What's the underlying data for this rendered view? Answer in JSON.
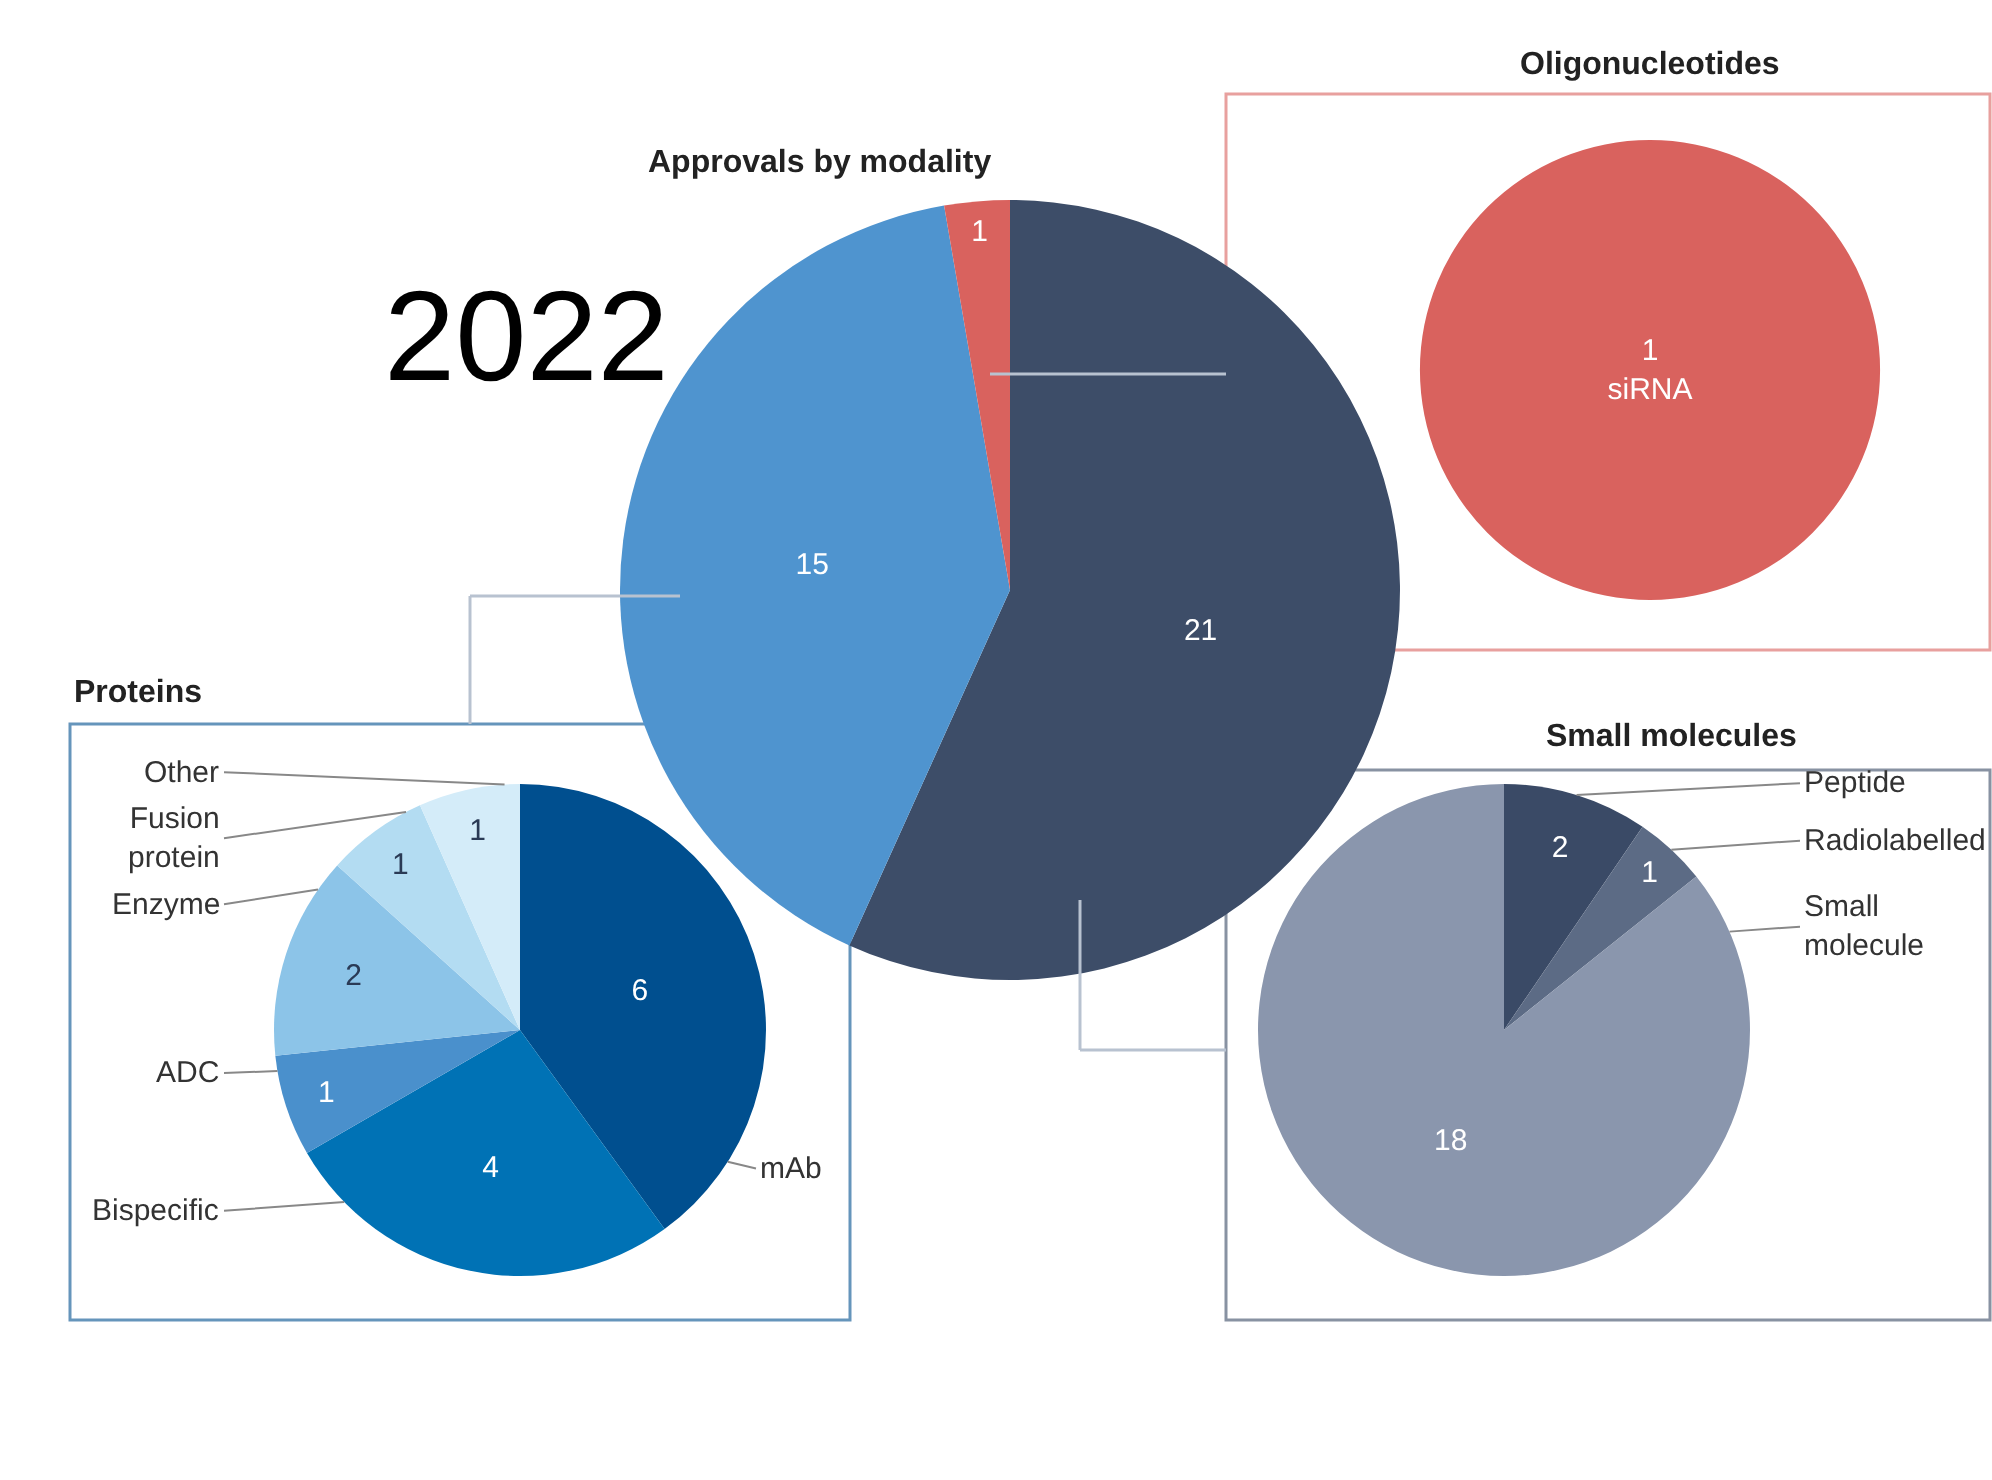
{
  "chart_data": [
    {
      "type": "pie",
      "title": "Approvals by modality",
      "categories": [
        null,
        null,
        null
      ],
      "values": [
        21,
        15,
        1
      ],
      "colors": [
        "#3d4d68",
        "#4f94cf",
        "#d9625e"
      ],
      "data_labels": true,
      "annotations": [
        "2022"
      ]
    },
    {
      "type": "pie",
      "title": "Oligonucleotides",
      "categories": [
        "siRNA"
      ],
      "values": [
        1
      ],
      "colors": [
        "#d9625e"
      ],
      "data_labels": true
    },
    {
      "type": "pie",
      "title": "Proteins",
      "categories": [
        "mAb",
        "Bispecific",
        "ADC",
        "Enzyme",
        "Fusion protein",
        "Other"
      ],
      "values": [
        6,
        4,
        1,
        2,
        1,
        1
      ],
      "colors": [
        "#004f8f",
        "#0072b5",
        "#4a90cc",
        "#8cc4e8",
        "#b3dcf2",
        "#d4ecf9"
      ],
      "data_labels": true
    },
    {
      "type": "pie",
      "title": "Small molecules",
      "categories": [
        "Peptide",
        "Radiolabelled",
        "Small molecule"
      ],
      "values": [
        2,
        1,
        18
      ],
      "colors": [
        "#3a4a66",
        "#5c6b85",
        "#8a96ad"
      ],
      "data_labels": true
    }
  ]
}
